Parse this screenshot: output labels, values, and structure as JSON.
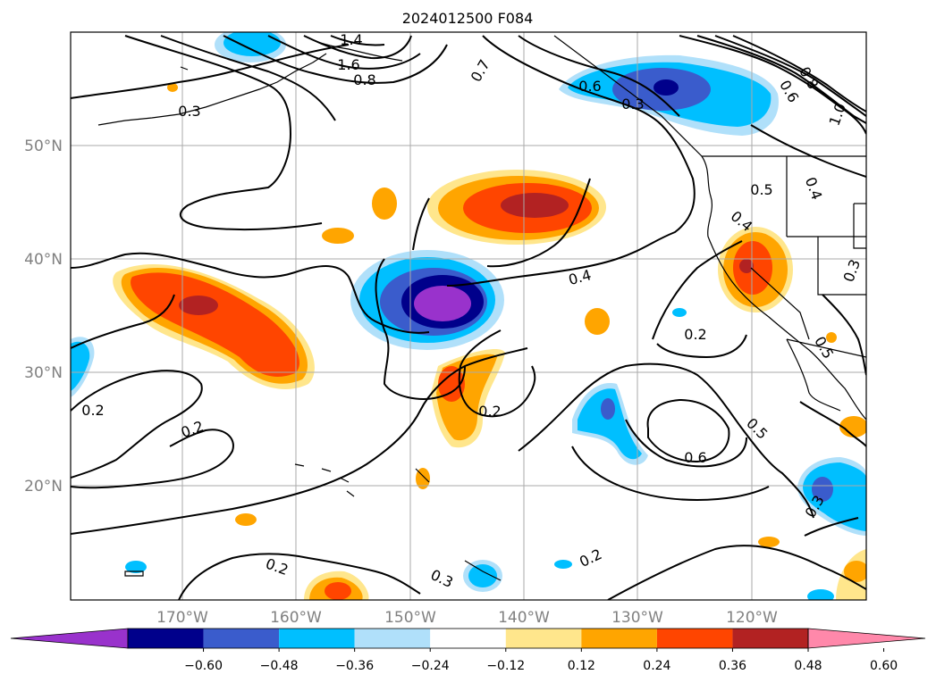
{
  "title": "2024012500 F084",
  "lat_labels": [
    "50°N",
    "40°N",
    "30°N",
    "20°N"
  ],
  "lon_labels": [
    "170°W",
    "160°W",
    "150°W",
    "140°W",
    "130°W",
    "120°W"
  ],
  "colorbar": {
    "ticks": [
      "−0.60",
      "−0.48",
      "−0.36",
      "−0.24",
      "−0.12",
      "0.12",
      "0.24",
      "0.36",
      "0.48",
      "0.60"
    ],
    "colors": [
      "#9932cc",
      "#00008b",
      "#3a5ccc",
      "#00bfff",
      "#b0e0fa",
      "#ffffff",
      "#ffe68c",
      "#ffa500",
      "#ff4500",
      "#b22222",
      "#ff88aa"
    ],
    "extend": "both"
  },
  "contour_labels": [
    "1.4",
    "1.6",
    "0.8",
    "0.7",
    "0.3",
    "0.6",
    "0.3",
    "0.6",
    "0.8",
    "1.0",
    "0.5",
    "0.4",
    "0.4",
    "0.4",
    "0.2",
    "0.2",
    "0.2",
    "0.5",
    "0.6",
    "0.5",
    "0.3",
    "0.2",
    "0.3",
    "0.2"
  ]
}
